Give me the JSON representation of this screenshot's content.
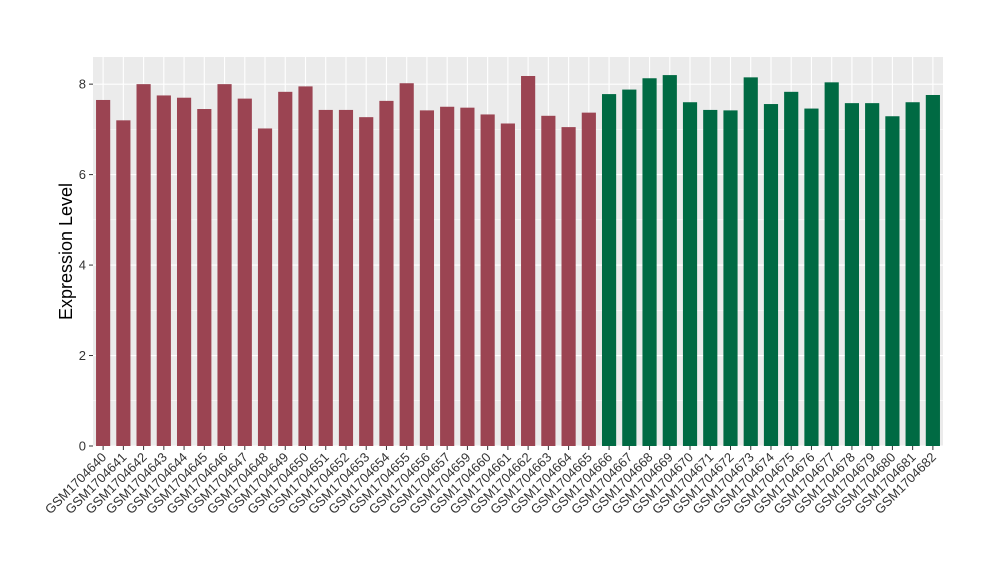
{
  "chart_data": {
    "type": "bar",
    "title": "",
    "xlabel": "",
    "ylabel": "Expression Level",
    "ylim": [
      0,
      8.6
    ],
    "yticks": [
      0,
      2,
      4,
      6,
      8
    ],
    "grid": true,
    "legend": "none",
    "colors": {
      "group1": "#9B4452",
      "group2": "#006A43",
      "panel_bg": "#EBEBEB",
      "grid": "#FFFFFF"
    },
    "categories": [
      "GSM1704640",
      "GSM1704641",
      "GSM1704642",
      "GSM1704643",
      "GSM1704644",
      "GSM1704645",
      "GSM1704646",
      "GSM1704647",
      "GSM1704648",
      "GSM1704649",
      "GSM1704650",
      "GSM1704651",
      "GSM1704652",
      "GSM1704653",
      "GSM1704654",
      "GSM1704655",
      "GSM1704656",
      "GSM1704657",
      "GSM1704659",
      "GSM1704660",
      "GSM1704661",
      "GSM1704662",
      "GSM1704663",
      "GSM1704664",
      "GSM1704665",
      "GSM1704666",
      "GSM1704667",
      "GSM1704668",
      "GSM1704669",
      "GSM1704670",
      "GSM1704671",
      "GSM1704672",
      "GSM1704673",
      "GSM1704674",
      "GSM1704675",
      "GSM1704676",
      "GSM1704677",
      "GSM1704678",
      "GSM1704679",
      "GSM1704680",
      "GSM1704681",
      "GSM1704682"
    ],
    "values": [
      7.65,
      7.2,
      8.0,
      7.75,
      7.7,
      7.45,
      8.0,
      7.68,
      7.02,
      7.83,
      7.95,
      7.43,
      7.43,
      7.27,
      7.63,
      8.02,
      7.42,
      7.5,
      7.48,
      7.33,
      7.13,
      8.18,
      7.3,
      7.05,
      7.37,
      7.78,
      7.88,
      8.13,
      8.2,
      7.6,
      7.43,
      7.42,
      8.15,
      7.56,
      7.83,
      7.46,
      8.04,
      7.58,
      7.58,
      7.29,
      7.6,
      7.76
    ],
    "groups": [
      "group1",
      "group1",
      "group1",
      "group1",
      "group1",
      "group1",
      "group1",
      "group1",
      "group1",
      "group1",
      "group1",
      "group1",
      "group1",
      "group1",
      "group1",
      "group1",
      "group1",
      "group1",
      "group1",
      "group1",
      "group1",
      "group1",
      "group1",
      "group1",
      "group1",
      "group2",
      "group2",
      "group2",
      "group2",
      "group2",
      "group2",
      "group2",
      "group2",
      "group2",
      "group2",
      "group2",
      "group2",
      "group2",
      "group2",
      "group2",
      "group2",
      "group2"
    ]
  }
}
